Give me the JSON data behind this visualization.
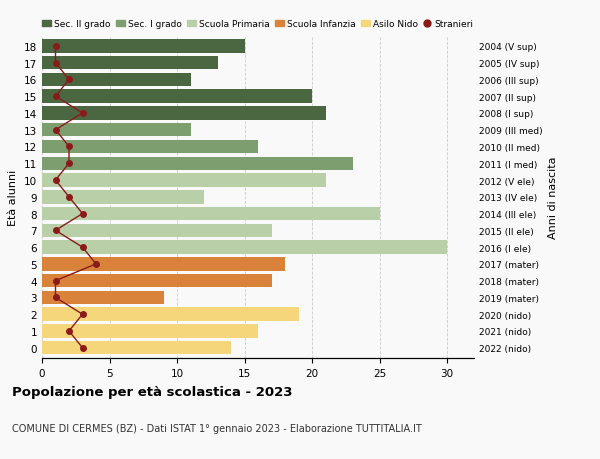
{
  "ages": [
    18,
    17,
    16,
    15,
    14,
    13,
    12,
    11,
    10,
    9,
    8,
    7,
    6,
    5,
    4,
    3,
    2,
    1,
    0
  ],
  "years": [
    "2004 (V sup)",
    "2005 (IV sup)",
    "2006 (III sup)",
    "2007 (II sup)",
    "2008 (I sup)",
    "2009 (III med)",
    "2010 (II med)",
    "2011 (I med)",
    "2012 (V ele)",
    "2013 (IV ele)",
    "2014 (III ele)",
    "2015 (II ele)",
    "2016 (I ele)",
    "2017 (mater)",
    "2018 (mater)",
    "2019 (mater)",
    "2020 (nido)",
    "2021 (nido)",
    "2022 (nido)"
  ],
  "bar_values": [
    15,
    13,
    11,
    20,
    21,
    11,
    16,
    23,
    21,
    12,
    25,
    17,
    30,
    18,
    17,
    9,
    19,
    16,
    14
  ],
  "bar_colors": [
    "#4a6741",
    "#4a6741",
    "#4a6741",
    "#4a6741",
    "#4a6741",
    "#7d9e6e",
    "#7d9e6e",
    "#7d9e6e",
    "#b8cfa8",
    "#b8cfa8",
    "#b8cfa8",
    "#b8cfa8",
    "#b8cfa8",
    "#d9823a",
    "#d9823a",
    "#d9823a",
    "#f5d67a",
    "#f5d67a",
    "#f5d67a"
  ],
  "stranieri_values": [
    1,
    1,
    2,
    1,
    3,
    1,
    2,
    2,
    1,
    2,
    3,
    1,
    3,
    4,
    1,
    1,
    3,
    2,
    3
  ],
  "stranieri_color": "#8b1a1a",
  "stranieri_marker": "o",
  "xlim": [
    0,
    32
  ],
  "xticks": [
    0,
    5,
    10,
    15,
    20,
    25,
    30
  ],
  "ylabel": "Età alunni",
  "ylabel2": "Anni di nascita",
  "bar_height": 0.8,
  "title": "Popolazione per età scolastica - 2023",
  "subtitle": "COMUNE DI CERMES (BZ) - Dati ISTAT 1° gennaio 2023 - Elaborazione TUTTITALIA.IT",
  "legend_labels": [
    "Sec. II grado",
    "Sec. I grado",
    "Scuola Primaria",
    "Scuola Infanzia",
    "Asilo Nido",
    "Stranieri"
  ],
  "legend_colors": [
    "#4a6741",
    "#7d9e6e",
    "#b8cfa8",
    "#d9823a",
    "#f5d67a",
    "#8b1a1a"
  ],
  "bg_color": "#f9f9f9",
  "grid_color": "#cccccc"
}
